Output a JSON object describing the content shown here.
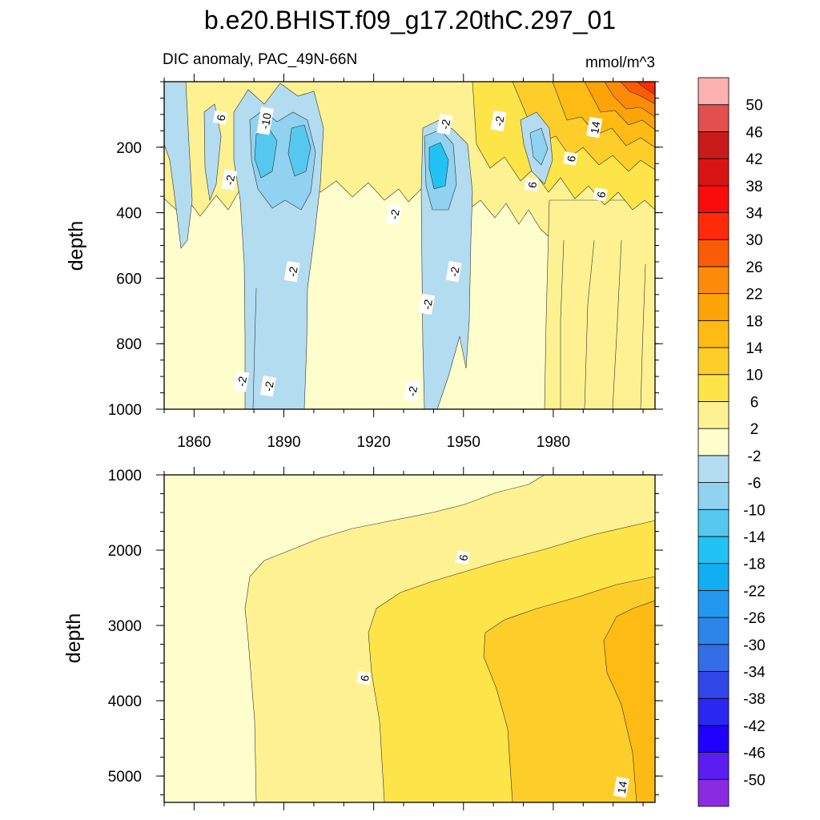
{
  "chart_data": {
    "type": "heatmap",
    "title": "b.e20.BHIST.f09_g17.20thC.297_01",
    "subtitle_left": "DIC anomaly, PAC_49N-66N",
    "units": "mmol/m^3",
    "xlabel": "",
    "xlim": [
      1850,
      2014
    ],
    "x_ticks": [
      1860,
      1890,
      1920,
      1950,
      1980
    ],
    "panels": [
      {
        "name": "upper",
        "ylabel": "depth",
        "ylim": [
          0,
          1000
        ],
        "y_ticks": [
          200,
          400,
          600,
          800,
          1000
        ],
        "contour_labels": [
          {
            "text": "6",
            "x": 1869,
            "y": 110
          },
          {
            "text": "-10",
            "x": 1884,
            "y": 120
          },
          {
            "text": "-2",
            "x": 1872,
            "y": 300
          },
          {
            "text": "-2",
            "x": 1893,
            "y": 580
          },
          {
            "text": "-2",
            "x": 1876,
            "y": 915
          },
          {
            "text": "-2",
            "x": 1885,
            "y": 930
          },
          {
            "text": "-2",
            "x": 1927,
            "y": 405
          },
          {
            "text": "-2",
            "x": 1944,
            "y": 130
          },
          {
            "text": "-2",
            "x": 1947,
            "y": 580
          },
          {
            "text": "-2",
            "x": 1938,
            "y": 680
          },
          {
            "text": "-2",
            "x": 1933,
            "y": 945
          },
          {
            "text": "-2",
            "x": 1962,
            "y": 120
          },
          {
            "text": "14",
            "x": 1994,
            "y": 140
          },
          {
            "text": "6",
            "x": 1986,
            "y": 235
          },
          {
            "text": "6",
            "x": 1973,
            "y": 315
          },
          {
            "text": "6",
            "x": 1996,
            "y": 345
          }
        ]
      },
      {
        "name": "lower",
        "ylabel": "depth",
        "ylim": [
          1000,
          5350
        ],
        "y_ticks": [
          1000,
          2000,
          3000,
          4000,
          5000
        ],
        "contour_labels": [
          {
            "text": "6",
            "x": 1950,
            "y": 2100
          },
          {
            "text": "6",
            "x": 1917,
            "y": 3700
          },
          {
            "text": "14",
            "x": 2003,
            "y": 5150
          }
        ]
      }
    ],
    "colorbar": {
      "levels": [
        -50,
        -46,
        -42,
        -38,
        -34,
        -30,
        -26,
        -22,
        -18,
        -14,
        -10,
        -6,
        -2,
        2,
        6,
        10,
        14,
        18,
        22,
        26,
        30,
        34,
        38,
        42,
        46,
        50
      ],
      "colors": [
        "#8a2be2",
        "#5a1ef0",
        "#1f00ff",
        "#2a28f0",
        "#3046e6",
        "#346ee6",
        "#2c86ea",
        "#2498f0",
        "#11aef2",
        "#22c2f4",
        "#56c8f0",
        "#90d2f0",
        "#b4dcf0",
        "#fefecc",
        "#fdf192",
        "#fde448",
        "#fdce2a",
        "#fdbb14",
        "#fca308",
        "#fb8b08",
        "#fa5c05",
        "#fe2a08",
        "#f80c0c",
        "#d81414",
        "#c81a1a",
        "#e24f4f",
        "#fcb0b0"
      ]
    }
  }
}
